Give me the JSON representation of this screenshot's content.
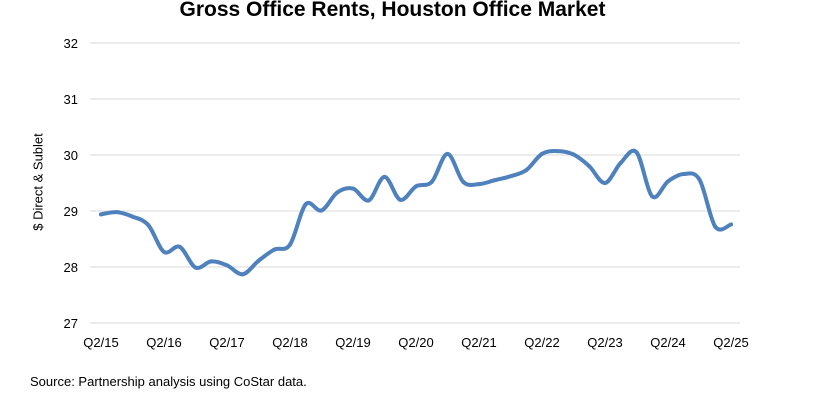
{
  "chart_data": {
    "type": "line",
    "title": "Gross Office Rents, Houston Office Market",
    "ylabel": "$ Direct & Sublet",
    "xlabel": "",
    "ylim": [
      27,
      32
    ],
    "yticks": [
      27,
      28,
      29,
      30,
      31,
      32
    ],
    "grid": "horizontal",
    "x_tick_labels": [
      "Q2/15",
      "Q2/16",
      "Q2/17",
      "Q2/18",
      "Q2/19",
      "Q2/20",
      "Q2/21",
      "Q2/22",
      "Q2/23",
      "Q2/24",
      "Q2/25"
    ],
    "x": [
      "Q2/15",
      "Q3/15",
      "Q4/15",
      "Q1/16",
      "Q2/16",
      "Q3/16",
      "Q4/16",
      "Q1/17",
      "Q2/17",
      "Q3/17",
      "Q4/17",
      "Q1/18",
      "Q2/18",
      "Q3/18",
      "Q4/18",
      "Q1/19",
      "Q2/19",
      "Q3/19",
      "Q4/19",
      "Q1/20",
      "Q2/20",
      "Q3/20",
      "Q4/20",
      "Q1/21",
      "Q2/21",
      "Q3/21",
      "Q4/21",
      "Q1/22",
      "Q2/22",
      "Q3/22",
      "Q4/22",
      "Q1/23",
      "Q2/23",
      "Q3/23",
      "Q4/23",
      "Q1/24",
      "Q2/24",
      "Q3/24",
      "Q4/24",
      "Q1/25",
      "Q2/25"
    ],
    "series": [
      {
        "color": "#4f81bd",
        "values": [
          28.94,
          28.98,
          28.9,
          28.75,
          28.27,
          28.36,
          27.99,
          28.1,
          28.03,
          27.87,
          28.11,
          28.31,
          28.4,
          29.12,
          29.01,
          29.33,
          29.4,
          29.19,
          29.61,
          29.2,
          29.44,
          29.52,
          30.02,
          29.52,
          29.48,
          29.55,
          29.62,
          29.73,
          30.02,
          30.07,
          30.01,
          29.8,
          29.5,
          29.86,
          30.05,
          29.26,
          29.53,
          29.66,
          29.56,
          28.72,
          28.76
        ]
      }
    ]
  },
  "source_note": "Source: Partnership analysis using CoStar data."
}
